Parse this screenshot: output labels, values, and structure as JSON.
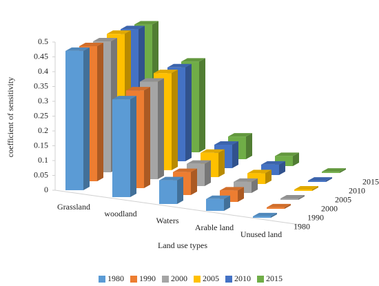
{
  "chart_data": {
    "type": "bar3d",
    "xlabel": "Land use types",
    "ylabel": "coefficient of sensitivity",
    "categories": [
      "Grassland",
      "woodland",
      "Waters",
      "Arable land",
      "Unused land"
    ],
    "series": [
      {
        "name": "1980",
        "color": "#5b9bd5",
        "values": [
          0.47,
          0.33,
          0.08,
          0.04,
          0.005
        ]
      },
      {
        "name": "1990",
        "color": "#ed7d31",
        "values": [
          0.47,
          0.34,
          0.08,
          0.04,
          0.005
        ]
      },
      {
        "name": "2000",
        "color": "#a5a5a5",
        "values": [
          0.47,
          0.35,
          0.08,
          0.04,
          0.005
        ]
      },
      {
        "name": "2005",
        "color": "#ffc000",
        "values": [
          0.48,
          0.36,
          0.09,
          0.04,
          0.005
        ]
      },
      {
        "name": "2010",
        "color": "#4472c4",
        "values": [
          0.48,
          0.36,
          0.09,
          0.04,
          0.005
        ]
      },
      {
        "name": "2015",
        "color": "#70ad47",
        "values": [
          0.48,
          0.36,
          0.09,
          0.04,
          0.005
        ]
      }
    ],
    "ylim": [
      0,
      0.5
    ],
    "yticks": [
      0,
      0.05,
      0.1,
      0.15,
      0.2,
      0.25,
      0.3,
      0.35,
      0.4,
      0.45,
      0.5
    ],
    "legend": "bottom"
  }
}
